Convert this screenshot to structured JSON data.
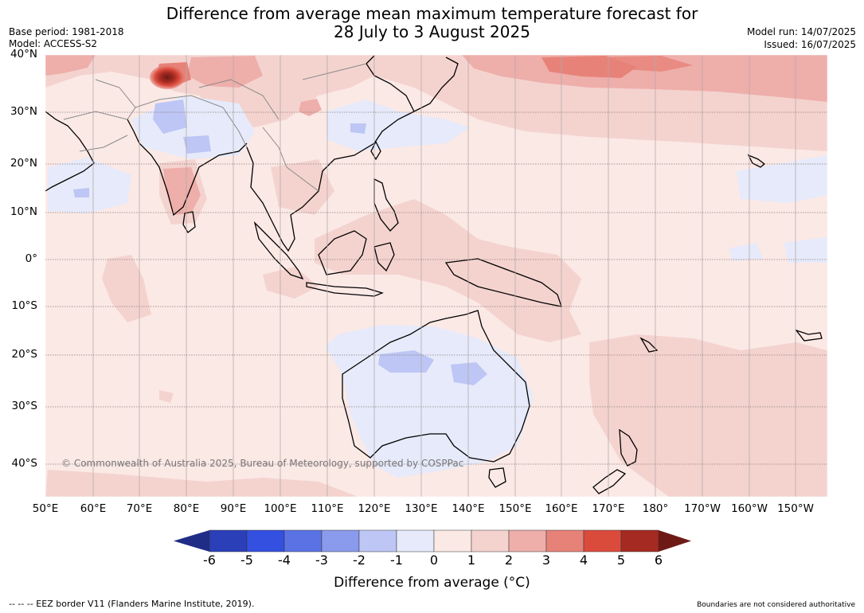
{
  "header": {
    "title_line1": "Difference from average mean maximum temperature forecast for",
    "title_line2": "28 July to 3 August 2025",
    "base_period": "Base period: 1981-2018",
    "model": "Model: ACCESS-S2",
    "model_run": "Model run: 14/07/2025",
    "issued": "Issued: 16/07/2025"
  },
  "map": {
    "lat_labels": [
      "40°N",
      "30°N",
      "20°N",
      "10°N",
      "0°",
      "10°S",
      "20°S",
      "30°S",
      "40°S"
    ],
    "lon_labels": [
      "50°E",
      "60°E",
      "70°E",
      "80°E",
      "90°E",
      "100°E",
      "110°E",
      "120°E",
      "130°E",
      "140°E",
      "150°E",
      "160°E",
      "170°E",
      "180°",
      "170°W",
      "160°W",
      "150°W"
    ],
    "watermark": "© Commonwealth of Australia 2025, Bureau of Meteorology, supported by COSPPac"
  },
  "colorbar": {
    "ticks": [
      "-6",
      "-5",
      "-4",
      "-3",
      "-2",
      "-1",
      "0",
      "1",
      "2",
      "3",
      "4",
      "5",
      "6"
    ],
    "colors": [
      "#1f2d86",
      "#2a3fb8",
      "#3450e0",
      "#5b72e4",
      "#8a9aec",
      "#bdc6f4",
      "#e6eafa",
      "#fbe9e6",
      "#f4d3cf",
      "#eeaeaa",
      "#e78278",
      "#db4b3c",
      "#a52a22",
      "#6d1a15"
    ],
    "label": "Difference from average (°C)"
  },
  "footer": {
    "eez": "--  --  -- EEZ border V11 (Flanders Marine Institute, 2019).",
    "boundaries": "Boundaries are not considered authoritative"
  }
}
